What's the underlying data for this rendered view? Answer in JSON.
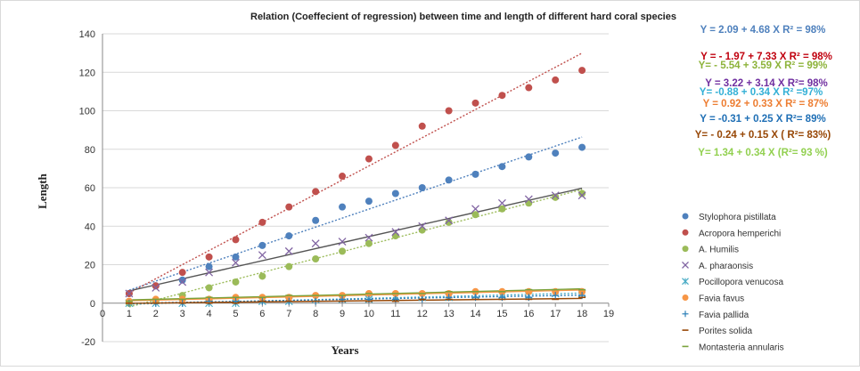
{
  "chart_data": {
    "type": "scatter",
    "title": "Relation (Coeffecient of regression) between time and length of different hard coral species",
    "xlabel": "Years",
    "ylabel": "Length",
    "xlim": [
      0,
      19
    ],
    "ylim": [
      -20,
      140
    ],
    "x_ticks": [
      "0",
      "1",
      "2",
      "3",
      "4",
      "5",
      "6",
      "7",
      "8",
      "9",
      "10",
      "11",
      "12",
      "13",
      "14",
      "15",
      "16",
      "17",
      "18",
      "19"
    ],
    "y_ticks": [
      "-20",
      "0",
      "20",
      "40",
      "60",
      "80",
      "100",
      "120",
      "140"
    ],
    "grid": "horizontal",
    "legend_position": "right",
    "x": [
      1,
      2,
      3,
      4,
      5,
      6,
      7,
      8,
      9,
      10,
      11,
      12,
      13,
      14,
      15,
      16,
      17,
      18
    ],
    "series": [
      {
        "name": "Stylophora pistillata",
        "color": "#4f81bd",
        "marker": "circle",
        "trend": {
          "intercept": 2.09,
          "slope": 4.68
        },
        "values": [
          5,
          9,
          12,
          19,
          24,
          30,
          35,
          43,
          50,
          53,
          57,
          60,
          64,
          67,
          71,
          76,
          78,
          81
        ]
      },
      {
        "name": "Acropora hemperichi",
        "color": "#c0504d",
        "marker": "circle",
        "trend": {
          "intercept": -1.97,
          "slope": 7.33
        },
        "values": [
          5,
          9,
          16,
          24,
          33,
          42,
          50,
          58,
          66,
          75,
          82,
          92,
          100,
          104,
          108,
          112,
          116,
          121
        ]
      },
      {
        "name": "A. Humilis",
        "color": "#9bbb59",
        "marker": "circle",
        "trend": {
          "intercept": -5.54,
          "slope": 3.59
        },
        "values": [
          0,
          1,
          4,
          8,
          11,
          14,
          19,
          23,
          27,
          31,
          35,
          38,
          42,
          46,
          49,
          52,
          55,
          57
        ]
      },
      {
        "name": "A. pharaonsis",
        "color": "#8064a2",
        "marker": "x",
        "trend": {
          "intercept": 3.22,
          "slope": 3.14
        },
        "values": [
          5,
          8,
          11,
          16,
          21,
          25,
          27,
          31,
          32,
          34,
          37,
          40,
          43,
          49,
          52,
          54,
          56,
          56
        ]
      },
      {
        "name": "Pocillopora venucosa",
        "color": "#4bacc6",
        "marker": "star",
        "trend": {
          "intercept": -0.88,
          "slope": 0.34
        },
        "values": [
          0,
          0,
          0,
          0,
          0,
          1,
          1,
          2,
          2,
          2,
          3,
          3,
          3,
          4,
          4,
          4,
          5,
          5
        ]
      },
      {
        "name": "Favia favus",
        "color": "#f79646",
        "marker": "circle",
        "trend": {
          "intercept": 0.92,
          "slope": 0.33
        },
        "values": [
          1,
          2,
          2,
          2,
          3,
          3,
          3,
          4,
          4,
          5,
          5,
          5,
          5,
          6,
          6,
          6,
          6,
          6
        ]
      },
      {
        "name": "Favia pallida",
        "color": "#2c7fb8",
        "marker": "plus",
        "trend": {
          "intercept": -0.31,
          "slope": 0.25
        },
        "values": [
          0,
          0,
          0,
          1,
          1,
          1,
          1,
          1,
          2,
          2,
          2,
          2,
          3,
          3,
          3,
          3,
          4,
          4
        ]
      },
      {
        "name": "Porites solida",
        "color": "#974706",
        "marker": "dash",
        "trend": {
          "intercept": -0.24,
          "slope": 0.15
        },
        "values": [
          0,
          0,
          0,
          0,
          0,
          1,
          1,
          1,
          1,
          1,
          1,
          2,
          2,
          2,
          2,
          2,
          2,
          3
        ]
      },
      {
        "name": "Montasteria annularis",
        "color": "#7aa23b",
        "marker": "dash",
        "trend": {
          "intercept": 1.34,
          "slope": 0.34
        },
        "values": [
          1,
          2,
          2,
          3,
          3,
          3,
          4,
          4,
          4,
          5,
          5,
          5,
          6,
          6,
          6,
          7,
          7,
          7
        ]
      }
    ],
    "annotations": [
      {
        "text": "Y = 2.09 + 4.68 X    R² = 98%",
        "color": "#4f81bd"
      },
      {
        "text": "Y = - 1.97 + 7.33 X  R² = 98%",
        "color": "#c0000e"
      },
      {
        "text": "Y= - 5.54 + 3.59 X   R² = 99%",
        "color": "#8db33a"
      },
      {
        "text": "Y = 3.22 + 3.14 X    R²= 98%",
        "color": "#7030a0"
      },
      {
        "text": "Y= -0.88 + 0.34 X    R² =97%",
        "color": "#33b0d6"
      },
      {
        "text": "Y = 0.92 + 0.33 X    R² = 87%",
        "color": "#ed7d31"
      },
      {
        "text": "Y = -0.31 + 0.25 X R²= 89%",
        "color": "#1f6fb5"
      },
      {
        "text": "Y= - 0.24 + 0.15 X  ( R²= 83%)",
        "color": "#974706"
      },
      {
        "text": "Y= 1.34 + 0.34 X  (R²= 93 %)",
        "color": "#92d050"
      }
    ]
  }
}
